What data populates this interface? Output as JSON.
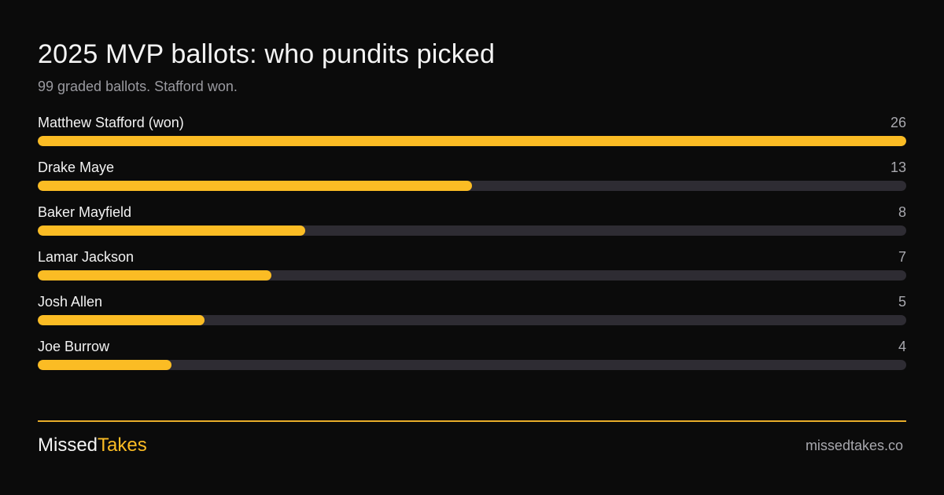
{
  "header": {
    "title": "2025 MVP ballots: who pundits picked",
    "subtitle": "99 graded ballots. Stafford won."
  },
  "chart_data": {
    "type": "bar",
    "orientation": "horizontal",
    "categories": [
      "Matthew Stafford (won)",
      "Drake Maye",
      "Baker Mayfield",
      "Lamar Jackson",
      "Josh Allen",
      "Joe Burrow"
    ],
    "values": [
      26,
      13,
      8,
      7,
      5,
      4
    ],
    "xlim": [
      0,
      26
    ]
  },
  "footer": {
    "brand_main": "Missed",
    "brand_accent": "Takes",
    "site": "missedtakes.co"
  },
  "colors": {
    "background": "#0b0b0b",
    "bar_fill": "#fbbc24",
    "bar_track": "#2e2c33",
    "accent": "#fbbc24"
  }
}
